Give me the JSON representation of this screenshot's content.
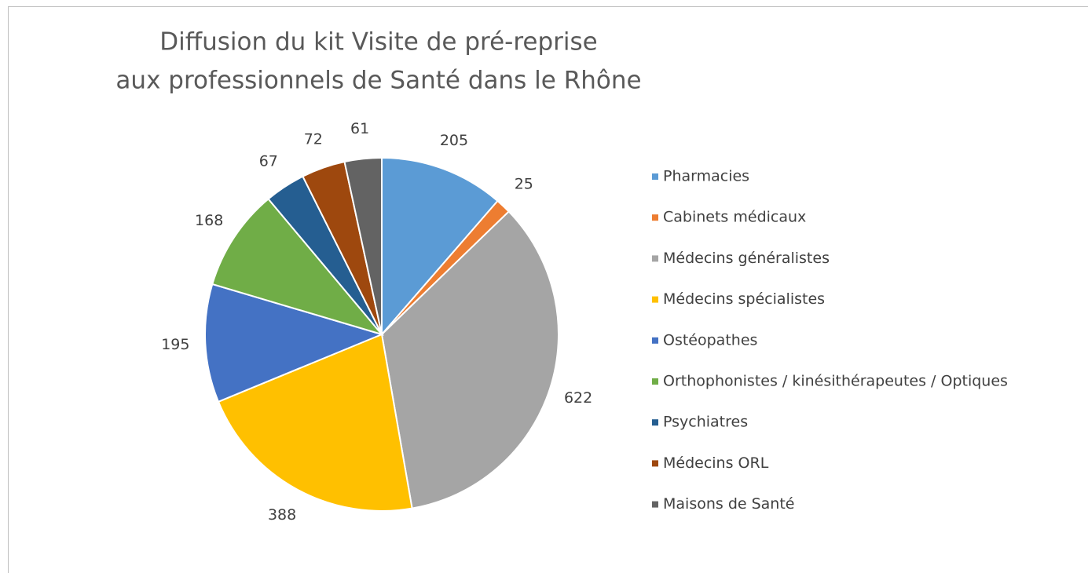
{
  "chart_data": {
    "type": "pie",
    "title": [
      "Diffusion du kit Visite de pré-reprise",
      "aux professionnels de Santé dans le Rhône"
    ],
    "categories": [
      "Pharmacies",
      "Cabinets médicaux",
      "Médecins généralistes",
      "Médecins spécialistes",
      "Ostéopathes",
      "Orthophonistes / kinésithérapeutes / Optiques",
      "Psychiatres",
      "Médecins ORL",
      "Maisons de Santé"
    ],
    "values": [
      205,
      25,
      622,
      388,
      195,
      168,
      67,
      72,
      61
    ],
    "colors": [
      "#5b9bd5",
      "#ed7d31",
      "#a5a5a5",
      "#ffc000",
      "#4472c4",
      "#70ad47",
      "#255e91",
      "#9e480e",
      "#636363"
    ],
    "legend": "right"
  }
}
